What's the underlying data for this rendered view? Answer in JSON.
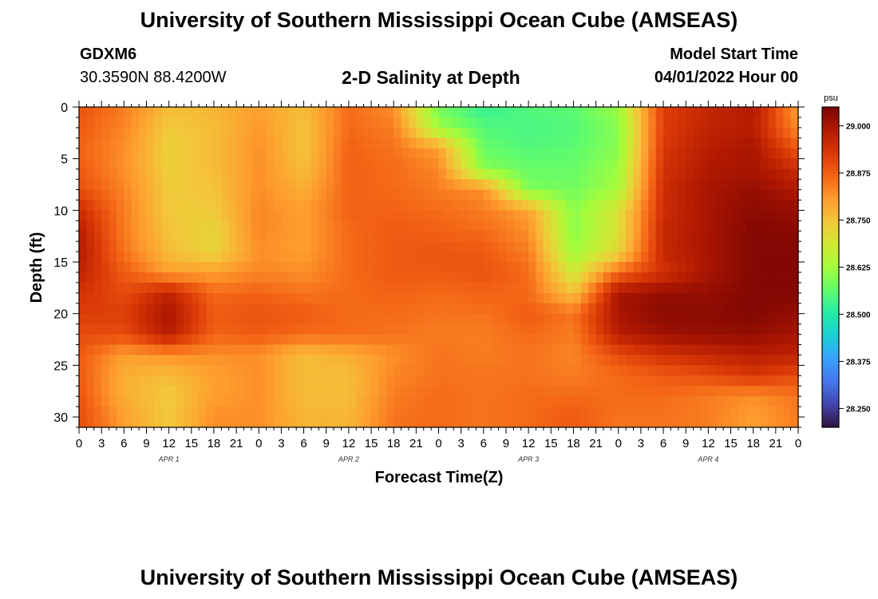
{
  "header": {
    "title": "University of Southern Mississippi Ocean Cube (AMSEAS)",
    "station": "GDXM6",
    "coords": "30.3590N  88.4200W",
    "subtitle": "2-D Salinity at Depth",
    "start_label": "Model Start Time",
    "start_value": "04/01/2022 Hour 00"
  },
  "footer": {
    "title": "University of Southern Mississippi Ocean Cube (AMSEAS)"
  },
  "chart_data": {
    "type": "heatmap",
    "title": "2-D Salinity at Depth",
    "xlabel": "Forecast Time(Z)",
    "ylabel": "Depth (ft)",
    "x_hours": [
      0,
      3,
      6,
      9,
      12,
      15,
      18,
      21,
      24,
      27,
      30,
      33,
      36,
      39,
      42,
      45,
      48,
      51,
      54,
      57,
      60,
      63,
      66,
      69,
      72,
      75,
      78,
      81,
      84,
      87,
      90,
      93,
      96
    ],
    "x_tick_labels": [
      "0",
      "3",
      "6",
      "9",
      "12",
      "15",
      "18",
      "21",
      "0",
      "3",
      "6",
      "9",
      "12",
      "15",
      "18",
      "21",
      "0",
      "3",
      "6",
      "9",
      "12",
      "15",
      "18",
      "21",
      "0",
      "3",
      "6",
      "9",
      "12",
      "15",
      "18",
      "21",
      "0"
    ],
    "day_labels": [
      {
        "label": "APR 1",
        "hour": 12
      },
      {
        "label": "APR 2",
        "hour": 36
      },
      {
        "label": "APR 3",
        "hour": 60
      },
      {
        "label": "APR 4",
        "hour": 84
      }
    ],
    "xlim": [
      0,
      96
    ],
    "ylim": [
      0,
      31
    ],
    "y_inverted": true,
    "y_ticks": [
      0,
      5,
      10,
      15,
      20,
      25,
      30
    ],
    "colorbar": {
      "unit": "psu",
      "min": 28.2,
      "max": 29.05,
      "ticks": [
        "29.000",
        "28.875",
        "28.750",
        "28.625",
        "28.500",
        "28.375",
        "28.250"
      ],
      "colors": [
        "#30123b",
        "#4145ab",
        "#4675ed",
        "#39a2fc",
        "#1bcfd4",
        "#24eca6",
        "#61fc6c",
        "#a4fc3b",
        "#d1e834",
        "#f3c63a",
        "#fe9b2d",
        "#f36315",
        "#d93806",
        "#b11901",
        "#7a0403"
      ]
    },
    "depths": [
      0,
      2,
      4,
      6,
      8,
      10,
      12,
      14,
      16,
      18,
      20,
      22,
      24,
      26,
      28,
      30
    ],
    "hours": [
      0,
      6,
      12,
      18,
      24,
      30,
      36,
      42,
      48,
      54,
      60,
      66,
      72,
      78,
      84,
      90,
      96
    ],
    "salinity": [
      [
        28.89,
        28.84,
        28.76,
        28.77,
        28.8,
        28.76,
        28.86,
        28.82,
        28.58,
        28.52,
        28.55,
        28.56,
        28.62,
        28.92,
        28.96,
        28.99,
        28.8
      ],
      [
        28.88,
        28.83,
        28.74,
        28.76,
        28.81,
        28.75,
        28.86,
        28.84,
        28.62,
        28.55,
        28.54,
        28.55,
        28.6,
        28.92,
        28.97,
        28.98,
        28.82
      ],
      [
        28.87,
        28.82,
        28.73,
        28.76,
        28.82,
        28.75,
        28.87,
        28.85,
        28.8,
        28.57,
        28.55,
        28.56,
        28.6,
        28.93,
        28.98,
        29.0,
        28.88
      ],
      [
        28.88,
        28.82,
        28.73,
        28.76,
        28.82,
        28.76,
        28.87,
        28.86,
        28.83,
        28.6,
        28.57,
        28.57,
        28.62,
        28.94,
        28.99,
        29.0,
        28.95
      ],
      [
        28.9,
        28.83,
        28.74,
        28.75,
        28.82,
        28.78,
        28.87,
        28.86,
        28.84,
        28.82,
        28.59,
        28.58,
        28.63,
        28.95,
        29.0,
        29.02,
        28.99
      ],
      [
        28.95,
        28.84,
        28.74,
        28.74,
        28.83,
        28.8,
        28.87,
        28.87,
        28.86,
        28.84,
        28.8,
        28.6,
        28.7,
        28.95,
        29.0,
        29.03,
        29.02
      ],
      [
        28.98,
        28.84,
        28.75,
        28.72,
        28.83,
        28.8,
        28.86,
        28.88,
        28.87,
        28.86,
        28.82,
        28.6,
        28.7,
        28.96,
        29.0,
        29.04,
        29.03
      ],
      [
        28.99,
        28.85,
        28.76,
        28.72,
        28.82,
        28.8,
        28.86,
        28.88,
        28.89,
        28.88,
        28.84,
        28.62,
        28.72,
        28.96,
        29.0,
        29.04,
        29.04
      ],
      [
        28.97,
        28.88,
        28.8,
        28.8,
        28.83,
        28.82,
        28.86,
        28.88,
        28.88,
        28.89,
        28.86,
        28.68,
        28.86,
        28.94,
        29.0,
        29.04,
        29.04
      ],
      [
        28.94,
        28.9,
        28.97,
        28.86,
        28.87,
        28.85,
        28.86,
        28.87,
        28.86,
        28.87,
        28.86,
        28.75,
        29.0,
        29.02,
        29.02,
        29.04,
        29.04
      ],
      [
        28.92,
        28.92,
        29.0,
        28.88,
        28.89,
        28.88,
        28.86,
        28.86,
        28.85,
        28.85,
        28.88,
        28.85,
        29.0,
        29.03,
        29.03,
        29.04,
        29.02
      ],
      [
        28.9,
        28.9,
        28.98,
        28.87,
        28.88,
        28.86,
        28.86,
        28.85,
        28.84,
        28.84,
        28.86,
        28.84,
        28.98,
        29.01,
        29.02,
        29.02,
        29.0
      ],
      [
        28.88,
        28.8,
        28.82,
        28.82,
        28.82,
        28.76,
        28.78,
        28.82,
        28.85,
        28.84,
        28.85,
        28.83,
        28.9,
        28.94,
        28.96,
        28.98,
        28.97
      ],
      [
        28.88,
        28.78,
        28.76,
        28.8,
        28.82,
        28.76,
        28.76,
        28.83,
        28.85,
        28.85,
        28.85,
        28.84,
        28.86,
        28.88,
        28.9,
        28.93,
        28.9
      ],
      [
        28.89,
        28.78,
        28.74,
        28.8,
        28.82,
        28.76,
        28.76,
        28.84,
        28.86,
        28.85,
        28.86,
        28.86,
        28.86,
        28.86,
        28.84,
        28.82,
        28.85
      ],
      [
        28.9,
        28.8,
        28.74,
        28.82,
        28.82,
        28.77,
        28.77,
        28.85,
        28.86,
        28.85,
        28.86,
        28.88,
        28.85,
        28.85,
        28.84,
        28.8,
        28.84
      ]
    ]
  }
}
